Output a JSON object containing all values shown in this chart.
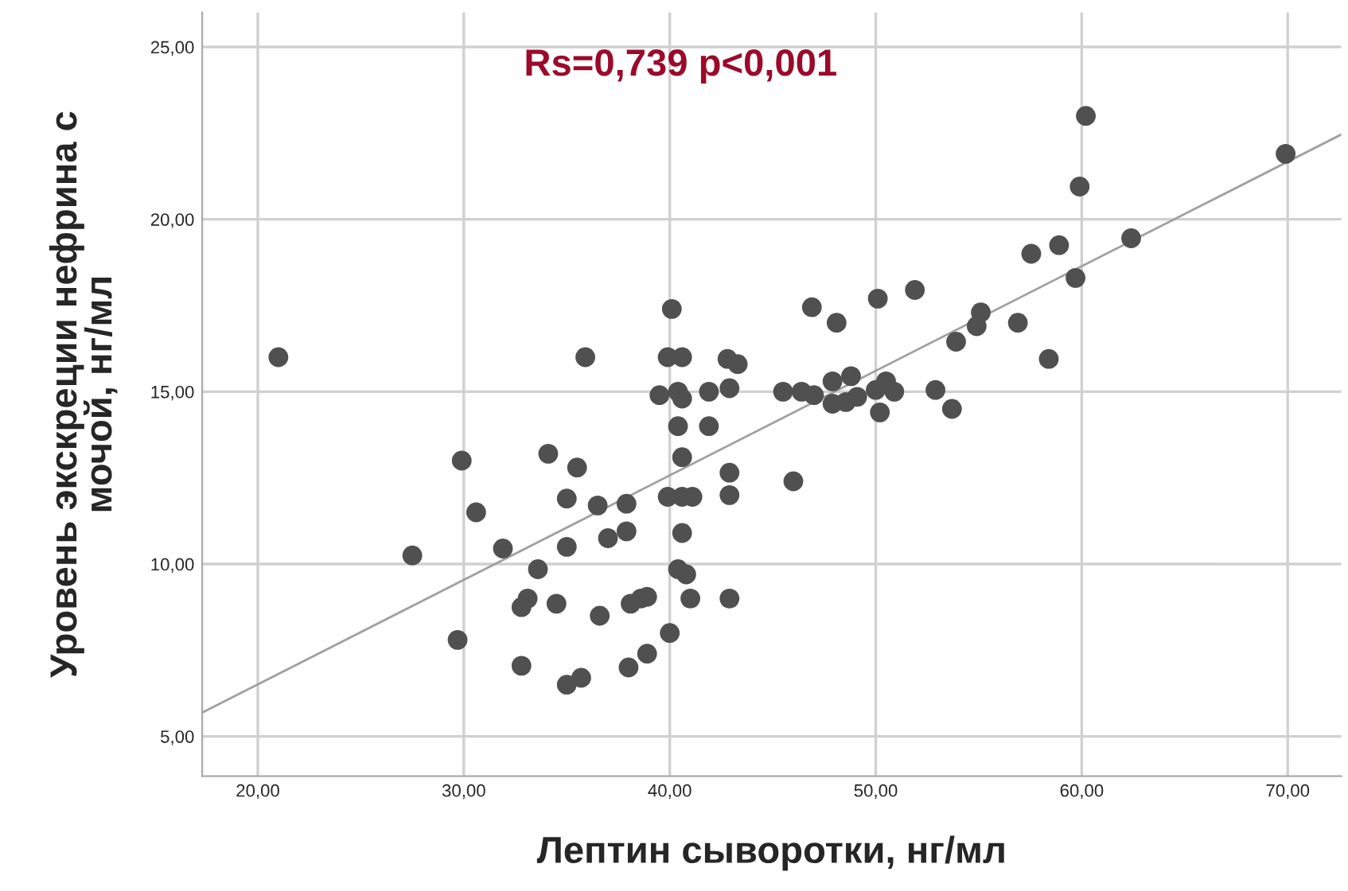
{
  "chart_data": {
    "type": "scatter",
    "xlabel": "Лептин сыворотки, нг/мл",
    "ylabel": "Уровень экскреции нефрина с\nмочой, нг/мл",
    "annotations": [
      "Rs=0,739 p<0,001"
    ],
    "xlim": [
      17.3,
      72.6
    ],
    "ylim": [
      3.85,
      26
    ],
    "xticks": [
      {
        "value": 20,
        "label": "20,00"
      },
      {
        "value": 30,
        "label": "30,00"
      },
      {
        "value": 40,
        "label": "40,00"
      },
      {
        "value": 50,
        "label": "50,00"
      },
      {
        "value": 60,
        "label": "60,00"
      },
      {
        "value": 70,
        "label": "70,00"
      }
    ],
    "yticks": [
      {
        "value": 5,
        "label": "5,00"
      },
      {
        "value": 10,
        "label": "10,00"
      },
      {
        "value": 15,
        "label": "15,00"
      },
      {
        "value": 20,
        "label": "20,00"
      },
      {
        "value": 25,
        "label": "25,00"
      }
    ],
    "grid": true,
    "series": [
      {
        "color": "#505050",
        "marker": "circle",
        "x": [
          21.0,
          35.9,
          40.1,
          39.9,
          40.6,
          42.8,
          43.3,
          39.5,
          40.4,
          40.6,
          41.9,
          42.9,
          40.4,
          41.9,
          40.6,
          29.9,
          34.1,
          35.5,
          42.9,
          42.9,
          30.6,
          35.0,
          36.5,
          37.9,
          39.9,
          40.6,
          41.1,
          40.6,
          31.9,
          35.0,
          37.0,
          37.9,
          27.5,
          33.6,
          40.4,
          40.8,
          33.1,
          32.8,
          34.5,
          36.6,
          38.1,
          38.6,
          38.9,
          41.0,
          42.9,
          29.7,
          40.0,
          32.8,
          38.0,
          38.9,
          35.0,
          35.7,
          60.2,
          69.9,
          59.9,
          57.55,
          58.9,
          62.4,
          59.7,
          46.9,
          50.1,
          51.9,
          48.1,
          55.1,
          54.9,
          56.9,
          53.9,
          58.4,
          45.5,
          46.4,
          47.0,
          47.9,
          48.8,
          47.9,
          48.55,
          49.1,
          50.0,
          50.5,
          50.2,
          50.9,
          52.9,
          53.7,
          46.0
        ],
        "values": [
          16.0,
          16.0,
          17.4,
          16.0,
          16.0,
          15.95,
          15.8,
          14.9,
          15.0,
          14.8,
          15.0,
          15.1,
          14.0,
          14.0,
          13.1,
          13.0,
          13.2,
          12.8,
          12.65,
          12.0,
          11.5,
          11.9,
          11.7,
          11.75,
          11.95,
          11.95,
          11.95,
          10.9,
          10.45,
          10.5,
          10.75,
          10.95,
          10.25,
          9.85,
          9.85,
          9.7,
          9.0,
          8.75,
          8.85,
          8.5,
          8.85,
          9.0,
          9.05,
          9.0,
          9.0,
          7.8,
          8.0,
          7.05,
          7.0,
          7.4,
          6.5,
          6.7,
          23.0,
          21.9,
          20.95,
          19.0,
          19.25,
          19.45,
          18.3,
          17.45,
          17.7,
          17.95,
          17.0,
          17.3,
          16.9,
          17.0,
          16.45,
          15.95,
          15.0,
          15.0,
          14.9,
          15.3,
          15.45,
          14.65,
          14.7,
          14.85,
          15.05,
          15.3,
          14.4,
          15.0,
          15.05,
          14.5,
          12.4
        ]
      },
      {
        "type": "line",
        "color": "#a0a0a0",
        "line_style": "solid",
        "x": [
          17.3,
          72.6
        ],
        "values": [
          5.69,
          22.46
        ]
      }
    ]
  }
}
